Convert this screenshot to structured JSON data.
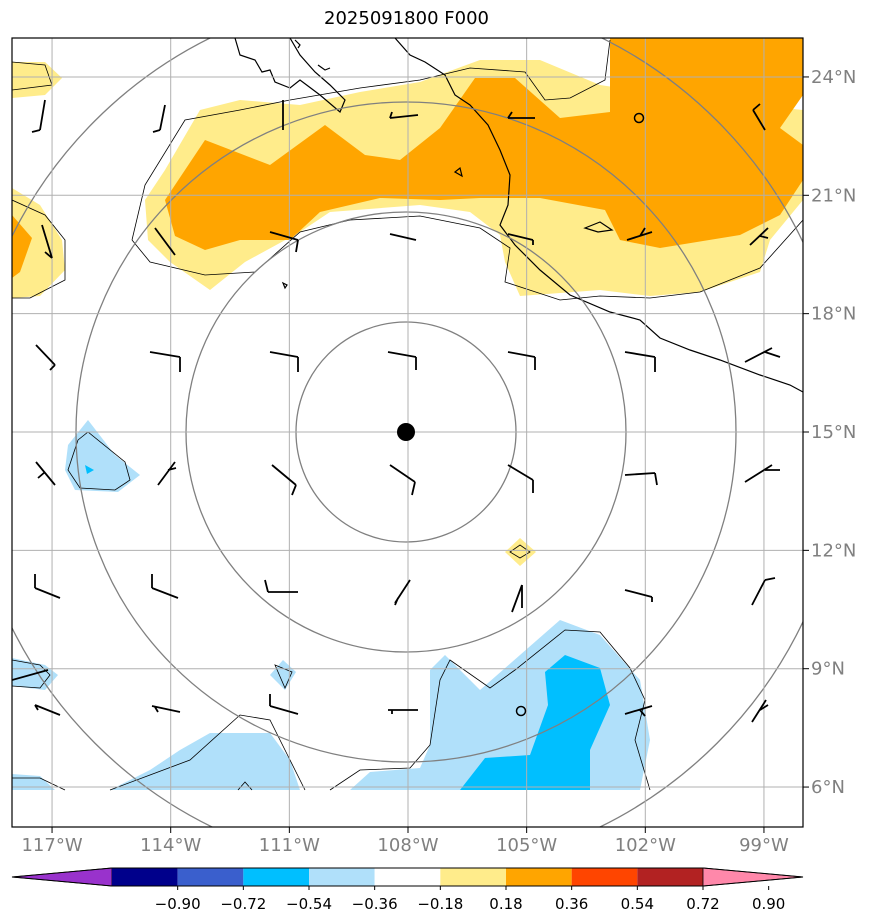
{
  "title": "2025091800 F000",
  "map": {
    "lon_range": [
      -118,
      -98
    ],
    "lat_range": [
      5,
      25
    ],
    "center": {
      "lon": -108,
      "lat": 15
    },
    "lat_ticks": [
      {
        "value": 24,
        "label": "24°N"
      },
      {
        "value": 21,
        "label": "21°N"
      },
      {
        "value": 18,
        "label": "18°N"
      },
      {
        "value": 15,
        "label": "15°N"
      },
      {
        "value": 12,
        "label": "12°N"
      },
      {
        "value": 9,
        "label": "9°N"
      },
      {
        "value": 6,
        "label": "6°N"
      }
    ],
    "lon_ticks": [
      {
        "value": -117,
        "label": "117°W"
      },
      {
        "value": -114,
        "label": "114°W"
      },
      {
        "value": -111,
        "label": "111°W"
      },
      {
        "value": -108,
        "label": "108°W"
      },
      {
        "value": -105,
        "label": "105°W"
      },
      {
        "value": -102,
        "label": "102°W"
      },
      {
        "value": -99,
        "label": "99°W"
      }
    ]
  },
  "colorbar": {
    "colors": [
      "#9932cc",
      "#00008b",
      "#3a5fcd",
      "#00bfff",
      "#b0e0fa",
      "#ffffff",
      "#ffec8b",
      "#ffa500",
      "#ff4500",
      "#b22222",
      "#ff88aa"
    ],
    "tick_labels": [
      "−0.90",
      "−0.72",
      "−0.54",
      "−0.36",
      "−0.18",
      "0.18",
      "0.36",
      "0.54",
      "0.72",
      "0.90"
    ]
  },
  "colors": {
    "pale_yellow": "#ffec8b",
    "orange": "#ffa500",
    "light_blue": "#b0e0fa",
    "deep_sky_blue": "#00bfff"
  }
}
